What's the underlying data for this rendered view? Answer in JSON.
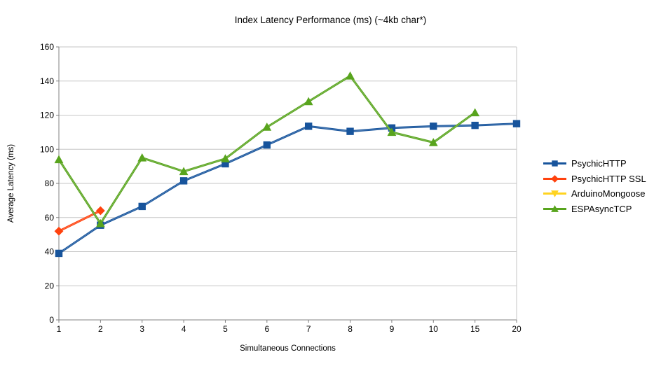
{
  "chart_data": {
    "type": "line",
    "title": "Index Latency Performance (ms) (~4kb char*)",
    "xlabel": "Simultaneous Connections",
    "ylabel": "Average Latency (ms)",
    "categories": [
      "1",
      "2",
      "3",
      "4",
      "5",
      "6",
      "7",
      "8",
      "9",
      "10",
      "15",
      "20"
    ],
    "y_ticks": [
      "0",
      "20",
      "40",
      "60",
      "80",
      "100",
      "120",
      "140",
      "160"
    ],
    "ylim": [
      0,
      160
    ],
    "grid": true,
    "legend_position": "right",
    "series": [
      {
        "name": "PsychicHTTP",
        "color": "#17549C",
        "marker": "square",
        "values": [
          39,
          55.5,
          66.5,
          81.5,
          91.5,
          102.5,
          113.5,
          110.5,
          112.5,
          113.5,
          114,
          115
        ]
      },
      {
        "name": "PsychicHTTP SSL",
        "color": "#FF420E",
        "marker": "diamond",
        "values": [
          52,
          64,
          null,
          null,
          null,
          null,
          null,
          null,
          null,
          null,
          null,
          null
        ]
      },
      {
        "name": "ArduinoMongoose",
        "color": "#FFD320",
        "marker": "triangle-down",
        "values": [
          null,
          null,
          null,
          null,
          null,
          null,
          null,
          null,
          null,
          null,
          null,
          null
        ]
      },
      {
        "name": "ESPAsyncTCP",
        "color": "#58A41D",
        "marker": "triangle-up",
        "values": [
          94,
          56.5,
          95,
          87,
          94.5,
          113,
          128,
          143,
          110,
          104,
          121.5,
          null
        ]
      }
    ],
    "style": {
      "gridline_color": "#C6C6C6",
      "axis_color": "#808080",
      "text_color": "#000000"
    }
  }
}
